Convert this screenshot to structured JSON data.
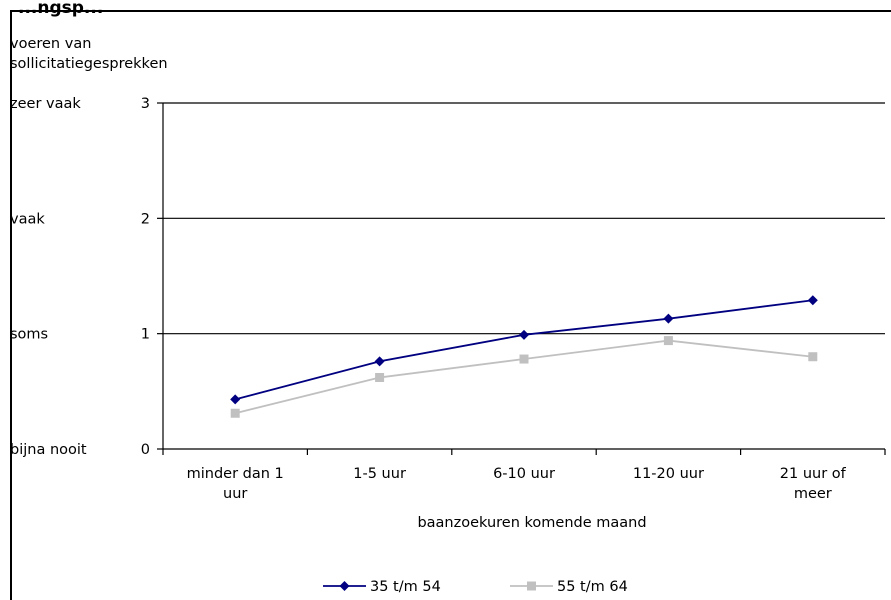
{
  "chart_data": {
    "type": "line",
    "title": "...ngsp...",
    "ylabel": [
      "voeren van",
      "sollicitatiegesprekken"
    ],
    "xlabel": "baanzoekuren komende maand",
    "categories": [
      [
        "minder dan 1",
        "uur"
      ],
      [
        "1-5 uur"
      ],
      [
        "6-10 uur"
      ],
      [
        "11-20 uur"
      ],
      [
        "21 uur of",
        "meer"
      ]
    ],
    "ylim": [
      0,
      3
    ],
    "yticks": [
      0,
      1,
      2,
      3
    ],
    "ytick_text_labels": [
      "bijna nooit",
      "soms",
      "vaak",
      "zeer vaak"
    ],
    "grid": true,
    "legend_position": "bottom",
    "series": [
      {
        "name": "35 t/m 54",
        "color": "#000080",
        "marker": "diamond",
        "values": [
          0.43,
          0.76,
          0.99,
          1.13,
          1.29
        ]
      },
      {
        "name": "55 t/m 64",
        "color": "#c0c0c0",
        "marker": "square",
        "values": [
          0.31,
          0.62,
          0.78,
          0.94,
          0.8
        ]
      }
    ]
  }
}
